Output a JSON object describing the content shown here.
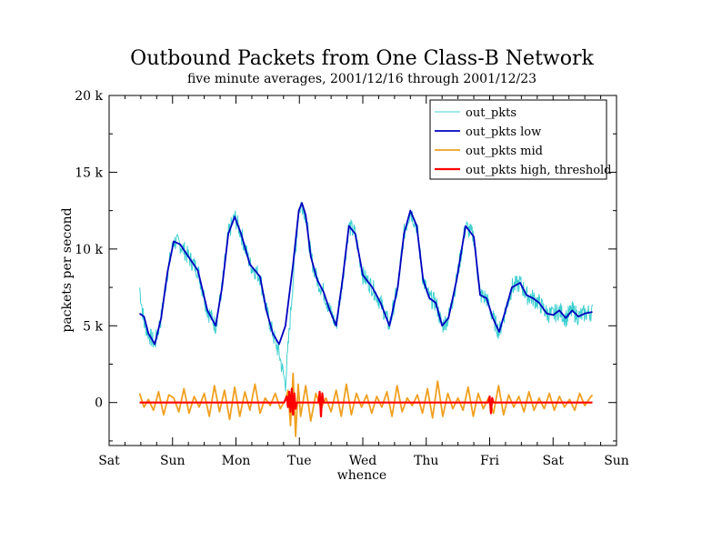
{
  "chart_data": {
    "type": "line",
    "title": "Outbound Packets from One Class-B Network",
    "subtitle": "five minute averages, 2001/12/16 through 2001/12/23",
    "xlabel": "whence",
    "ylabel": "packets per second",
    "x_unit": "days from Saturday 00:00",
    "xlim": [
      0,
      8
    ],
    "ylim": [
      -2800,
      20000
    ],
    "x_ticks": [
      {
        "x": 0,
        "label": "Sat"
      },
      {
        "x": 1,
        "label": "Sun"
      },
      {
        "x": 2,
        "label": "Mon"
      },
      {
        "x": 3,
        "label": "Tue"
      },
      {
        "x": 4,
        "label": "Wed"
      },
      {
        "x": 5,
        "label": "Thu"
      },
      {
        "x": 6,
        "label": "Fri"
      },
      {
        "x": 7,
        "label": "Sat"
      },
      {
        "x": 8,
        "label": "Sun"
      }
    ],
    "y_ticks": [
      {
        "y": 0,
        "label": "0"
      },
      {
        "y": 5000,
        "label": "5 k"
      },
      {
        "y": 10000,
        "label": "10 k"
      },
      {
        "y": 15000,
        "label": "15 k"
      },
      {
        "y": 20000,
        "label": "20 k"
      }
    ],
    "legend_position": "top-right",
    "series": [
      {
        "name": "out_pkts",
        "color": "#40d0d0",
        "noise": 600,
        "x": [
          0.48,
          0.55,
          0.62,
          0.72,
          0.82,
          0.92,
          1.02,
          1.12,
          1.25,
          1.4,
          1.55,
          1.68,
          1.78,
          1.88,
          1.98,
          2.08,
          2.22,
          2.38,
          2.48,
          2.58,
          2.68,
          2.78,
          2.9,
          2.99,
          3.04,
          3.1,
          3.18,
          3.28,
          3.38,
          3.48,
          3.58,
          3.68,
          3.78,
          3.88,
          4.0,
          4.15,
          4.28,
          4.42,
          4.55,
          4.65,
          4.75,
          4.85,
          4.95,
          5.05,
          5.15,
          5.25,
          5.35,
          5.48,
          5.62,
          5.75,
          5.85,
          5.95,
          6.05,
          6.15,
          6.25,
          6.35,
          6.48,
          6.58,
          6.68,
          6.78,
          6.9,
          7.0,
          7.1,
          7.2,
          7.3,
          7.4,
          7.5,
          7.62
        ],
        "y": [
          7500,
          5200,
          4500,
          3800,
          5500,
          8500,
          10500,
          10300,
          9500,
          8600,
          6000,
          5000,
          7500,
          11000,
          12100,
          11000,
          9000,
          8200,
          6000,
          4500,
          3200,
          1200,
          8000,
          12500,
          13000,
          12200,
          9500,
          8000,
          7200,
          6000,
          5000,
          8000,
          11500,
          11000,
          8300,
          7500,
          6500,
          5000,
          7500,
          11000,
          12500,
          11500,
          8000,
          6800,
          6500,
          5000,
          5500,
          8000,
          11500,
          10800,
          7000,
          6800,
          5500,
          4600,
          6000,
          7500,
          7800,
          7000,
          6800,
          6500,
          5800,
          5700,
          6000,
          5500,
          6000,
          5600,
          5800,
          5900
        ]
      },
      {
        "name": "out_pkts low",
        "color": "#0000c0",
        "noise": 0,
        "x": [
          0.48,
          0.55,
          0.62,
          0.72,
          0.82,
          0.92,
          1.02,
          1.12,
          1.25,
          1.4,
          1.55,
          1.68,
          1.78,
          1.88,
          1.98,
          2.08,
          2.22,
          2.38,
          2.48,
          2.58,
          2.68,
          2.78,
          2.9,
          2.99,
          3.04,
          3.1,
          3.18,
          3.28,
          3.38,
          3.48,
          3.58,
          3.68,
          3.78,
          3.88,
          4.0,
          4.15,
          4.28,
          4.42,
          4.55,
          4.65,
          4.75,
          4.85,
          4.95,
          5.05,
          5.15,
          5.25,
          5.35,
          5.48,
          5.62,
          5.75,
          5.85,
          5.95,
          6.05,
          6.15,
          6.25,
          6.35,
          6.48,
          6.58,
          6.68,
          6.78,
          6.9,
          7.0,
          7.1,
          7.2,
          7.3,
          7.4,
          7.5,
          7.62
        ],
        "y": [
          5800,
          5600,
          4500,
          3800,
          5500,
          8500,
          10500,
          10300,
          9500,
          8600,
          6000,
          5000,
          7500,
          11000,
          12100,
          11000,
          9000,
          8200,
          6000,
          4500,
          3800,
          5000,
          9000,
          12500,
          13000,
          12200,
          9500,
          8000,
          7200,
          6000,
          5000,
          8000,
          11500,
          11000,
          8300,
          7500,
          6500,
          5000,
          7500,
          11000,
          12500,
          11500,
          8000,
          6800,
          6500,
          5000,
          5500,
          8000,
          11500,
          10800,
          7000,
          6800,
          5500,
          4600,
          6000,
          7500,
          7800,
          7000,
          6800,
          6500,
          5800,
          5700,
          6000,
          5500,
          6000,
          5600,
          5800,
          5900
        ]
      },
      {
        "name": "out_pkts mid",
        "color": "#f0a020",
        "noise": 0,
        "x": [
          0.48,
          0.55,
          0.62,
          0.7,
          0.78,
          0.86,
          0.94,
          1.02,
          1.1,
          1.18,
          1.26,
          1.34,
          1.42,
          1.5,
          1.58,
          1.66,
          1.74,
          1.82,
          1.9,
          1.98,
          2.06,
          2.14,
          2.22,
          2.3,
          2.38,
          2.46,
          2.54,
          2.62,
          2.7,
          2.78,
          2.82,
          2.86,
          2.9,
          2.94,
          2.98,
          3.02,
          3.1,
          3.18,
          3.26,
          3.34,
          3.42,
          3.5,
          3.58,
          3.66,
          3.74,
          3.82,
          3.9,
          3.98,
          4.06,
          4.14,
          4.22,
          4.3,
          4.38,
          4.46,
          4.54,
          4.62,
          4.7,
          4.78,
          4.86,
          4.94,
          5.02,
          5.1,
          5.18,
          5.26,
          5.34,
          5.42,
          5.5,
          5.58,
          5.66,
          5.74,
          5.82,
          5.9,
          5.98,
          6.06,
          6.14,
          6.22,
          6.3,
          6.38,
          6.46,
          6.54,
          6.62,
          6.7,
          6.78,
          6.86,
          6.94,
          7.02,
          7.1,
          7.18,
          7.26,
          7.34,
          7.42,
          7.5,
          7.58,
          7.62
        ],
        "y": [
          600,
          -300,
          200,
          -500,
          700,
          -800,
          500,
          300,
          -600,
          900,
          -700,
          400,
          -300,
          600,
          -900,
          1100,
          -600,
          800,
          -1100,
          1000,
          -900,
          700,
          -500,
          1200,
          -700,
          300,
          -200,
          600,
          -400,
          200,
          800,
          -1500,
          1900,
          -2200,
          1200,
          -900,
          1100,
          -1200,
          600,
          -400,
          300,
          -600,
          800,
          -900,
          1200,
          -800,
          600,
          -300,
          500,
          -700,
          400,
          -300,
          700,
          -900,
          1100,
          -600,
          300,
          -200,
          500,
          -700,
          900,
          -1000,
          1400,
          -900,
          600,
          -400,
          300,
          -500,
          1000,
          -900,
          600,
          -400,
          300,
          -700,
          1100,
          -800,
          500,
          -300,
          400,
          -600,
          700,
          -500,
          300,
          -400,
          600,
          -500,
          400,
          -300,
          200,
          -500,
          600,
          -200,
          300,
          500
        ]
      },
      {
        "name": "out_pkts high, threshold",
        "color": "#ff0000",
        "noise": 0,
        "x": [
          0.48,
          2.76,
          2.8,
          2.82,
          2.84,
          2.86,
          2.88,
          2.9,
          2.92,
          2.94,
          2.96,
          3.3,
          3.32,
          3.34,
          3.36,
          3.38,
          5.98,
          6.0,
          6.02,
          6.04,
          6.06,
          7.62
        ],
        "y": [
          0,
          0,
          400,
          -300,
          700,
          -600,
          900,
          -800,
          600,
          -400,
          0,
          0,
          700,
          -900,
          600,
          0,
          0,
          400,
          -700,
          300,
          0,
          0
        ]
      }
    ]
  }
}
